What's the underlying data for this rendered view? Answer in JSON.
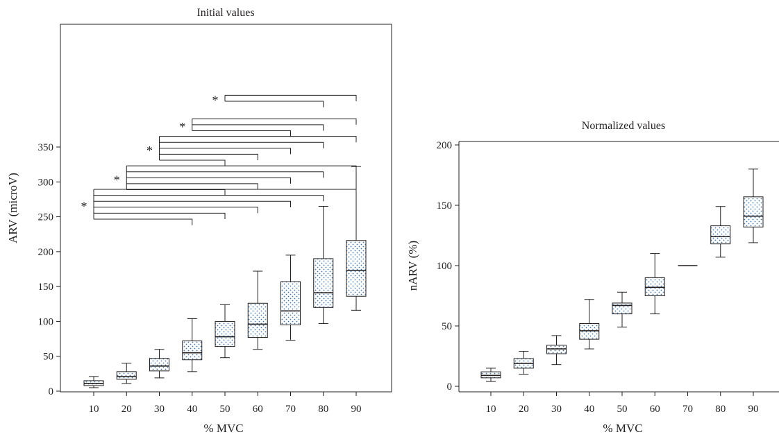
{
  "colors": {
    "ink": "#231f20",
    "box_dot": "#3b78b8",
    "box_fill": "#ffffff"
  },
  "chart_data": [
    {
      "type": "box",
      "title": "Initial values",
      "xlabel": "% MVC",
      "ylabel": "ARV (microV)",
      "categories": [
        "10",
        "20",
        "30",
        "40",
        "50",
        "60",
        "70",
        "80",
        "90"
      ],
      "ylim": [
        0,
        350
      ],
      "yticks": [
        0,
        50,
        100,
        150,
        200,
        250,
        300,
        350
      ],
      "grid": false,
      "boxes": [
        {
          "min": 5,
          "q1": 8,
          "median": 11,
          "q3": 15,
          "max": 21
        },
        {
          "min": 11,
          "q1": 17,
          "median": 21,
          "q3": 28,
          "max": 40
        },
        {
          "min": 19,
          "q1": 29,
          "median": 36,
          "q3": 47,
          "max": 60
        },
        {
          "min": 28,
          "q1": 45,
          "median": 55,
          "q3": 72,
          "max": 104
        },
        {
          "min": 48,
          "q1": 64,
          "median": 78,
          "q3": 100,
          "max": 124
        },
        {
          "min": 60,
          "q1": 77,
          "median": 96,
          "q3": 126,
          "max": 172
        },
        {
          "min": 73,
          "q1": 95,
          "median": 115,
          "q3": 157,
          "max": 195
        },
        {
          "min": 97,
          "q1": 120,
          "median": 141,
          "q3": 190,
          "max": 265
        },
        {
          "min": 116,
          "q1": 136,
          "median": 173,
          "q3": 216,
          "max": 322
        }
      ],
      "significance": [
        {
          "label": "*",
          "from": "10",
          "to": [
            "40",
            "50",
            "60",
            "70",
            "80",
            "90"
          ]
        },
        {
          "label": "*",
          "from": "20",
          "to": [
            "50",
            "60",
            "70",
            "80",
            "90"
          ]
        },
        {
          "label": "*",
          "from": "30",
          "to": [
            "50",
            "60",
            "70",
            "80",
            "90"
          ]
        },
        {
          "label": "*",
          "from": "40",
          "to": [
            "70",
            "80",
            "90"
          ]
        },
        {
          "label": "*",
          "from": "50",
          "to": [
            "80",
            "90"
          ]
        }
      ]
    },
    {
      "type": "box",
      "title": "Normalized values",
      "xlabel": "% MVC",
      "ylabel": "nARV (%)",
      "categories": [
        "10",
        "20",
        "30",
        "40",
        "50",
        "60",
        "70",
        "80",
        "90"
      ],
      "ylim": [
        0,
        200
      ],
      "yticks": [
        0,
        50,
        100,
        150,
        200
      ],
      "grid": false,
      "boxes": [
        {
          "min": 4,
          "q1": 7,
          "median": 9,
          "q3": 12,
          "max": 15
        },
        {
          "min": 10,
          "q1": 15,
          "median": 19,
          "q3": 23,
          "max": 29
        },
        {
          "min": 18,
          "q1": 27,
          "median": 31,
          "q3": 34,
          "max": 42
        },
        {
          "min": 31,
          "q1": 39,
          "median": 46,
          "q3": 52,
          "max": 72
        },
        {
          "min": 49,
          "q1": 60,
          "median": 67,
          "q3": 69,
          "max": 78
        },
        {
          "min": 60,
          "q1": 75,
          "median": 82,
          "q3": 90,
          "max": 110
        },
        {
          "min": 100,
          "q1": 100,
          "median": 100,
          "q3": 100,
          "max": 100
        },
        {
          "min": 107,
          "q1": 118,
          "median": 124,
          "q3": 133,
          "max": 149
        },
        {
          "min": 119,
          "q1": 132,
          "median": 141,
          "q3": 157,
          "max": 180
        }
      ],
      "significance": []
    }
  ]
}
